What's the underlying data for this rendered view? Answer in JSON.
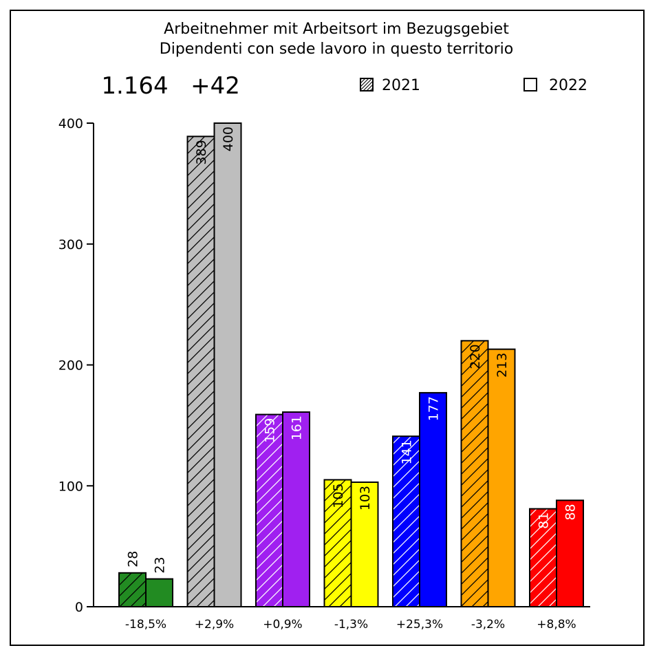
{
  "chart_data": {
    "type": "bar",
    "title": "Arbeitnehmer mit Arbeitsort im Bezugsgebiet",
    "subtitle": "Dipendenti con sede lavoro in questo territorio",
    "total": "1.164",
    "change": "+42",
    "categories": [
      "-18,5%",
      "+2,9%",
      "+0,9%",
      "-1,3%",
      "+25,3%",
      "-3,2%",
      "+8,8%"
    ],
    "series": [
      {
        "name": "2021",
        "pattern": "hatched",
        "values": [
          28,
          389,
          159,
          105,
          141,
          220,
          81
        ]
      },
      {
        "name": "2022",
        "pattern": "solid",
        "values": [
          23,
          400,
          161,
          103,
          177,
          213,
          88
        ]
      }
    ],
    "colors": [
      "#228B22",
      "#BEBEBE",
      "#A020F0",
      "#FFFF00",
      "#0000FF",
      "#FFA500",
      "#FF0000"
    ],
    "label_colors": [
      "#000000",
      "#000000",
      "#FFFFFF",
      "#000000",
      "#FFFFFF",
      "#000000",
      "#FFFFFF"
    ],
    "yticks": [
      0,
      100,
      200,
      300,
      400
    ],
    "ylim": [
      0,
      400
    ],
    "grid": false,
    "legend_position": "top-right"
  }
}
